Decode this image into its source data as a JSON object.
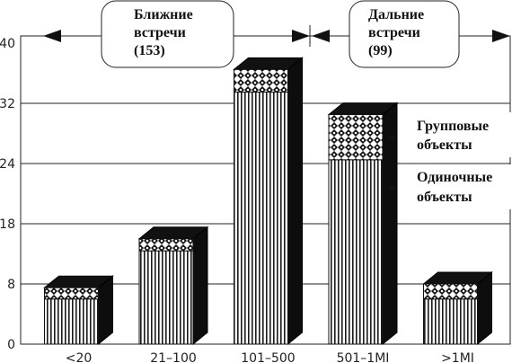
{
  "chart_data": {
    "type": "bar",
    "stacked": true,
    "yticks": [
      "0",
      "8",
      "18",
      "24",
      "32",
      "40"
    ],
    "ylim": [
      0,
      40
    ],
    "categories": [
      "<20",
      "21–100",
      "101–500",
      "501–1MI",
      ">1MI"
    ],
    "series": [
      {
        "name": "Одиночные объекты",
        "values": [
          6,
          13.5,
          33.5,
          24.5,
          6
        ]
      },
      {
        "name": "Групповые объекты",
        "values": [
          1.5,
          2,
          3,
          6,
          2
        ]
      }
    ],
    "groups": [
      {
        "line1": "Ближние",
        "line2": "встречи",
        "line3": "(153)"
      },
      {
        "line1": "Дальние",
        "line2": "встречи",
        "line3": "(99)"
      }
    ],
    "legend": {
      "group_line1": "Групповые",
      "group_line2": "объекты",
      "single_line1": "Одиночные",
      "single_line2": "объекты"
    }
  }
}
